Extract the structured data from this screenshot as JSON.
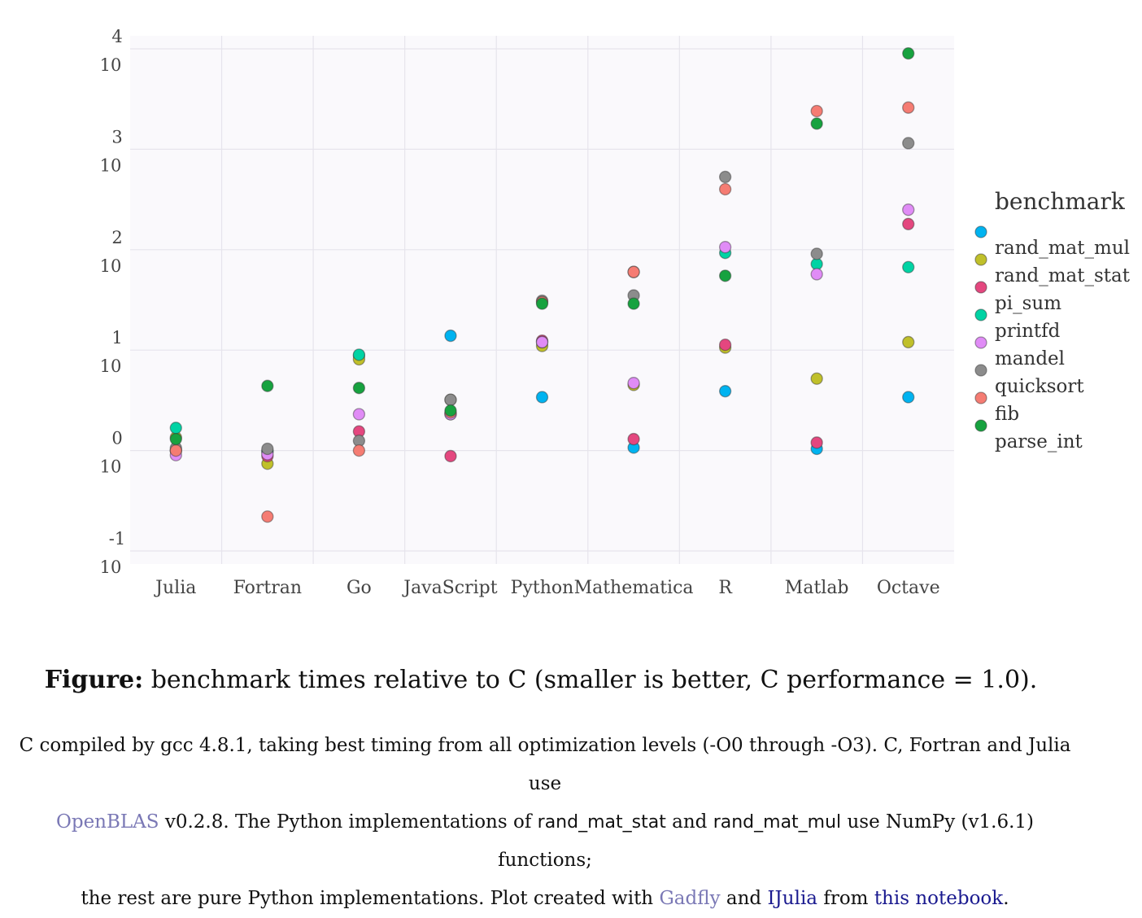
{
  "chart_data": {
    "type": "scatter",
    "title": "",
    "xlabel": "",
    "ylabel": "",
    "y_scale": "log10",
    "ylim": [
      0.1,
      10000
    ],
    "y_ticks": [
      {
        "base": "10",
        "exp": "-1"
      },
      {
        "base": "10",
        "exp": "0"
      },
      {
        "base": "10",
        "exp": "1"
      },
      {
        "base": "10",
        "exp": "2"
      },
      {
        "base": "10",
        "exp": "3"
      },
      {
        "base": "10",
        "exp": "4"
      }
    ],
    "grid": true,
    "legend_position": "right",
    "legend_title": "benchmark",
    "categories": [
      "Julia",
      "Fortran",
      "Go",
      "JavaScript",
      "Python",
      "Mathematica",
      "R",
      "Matlab",
      "Octave"
    ],
    "series": [
      {
        "name": "rand_mat_mul",
        "color": "#00b3f0",
        "values": [
          1.0,
          0.98,
          8.8,
          13.9,
          3.4,
          1.07,
          3.9,
          1.04,
          3.4
        ]
      },
      {
        "name": "rand_mat_stat",
        "color": "#c0c02a",
        "values": [
          1.35,
          0.74,
          8.1,
          3.2,
          11.0,
          4.5,
          10.6,
          5.2,
          12.0
        ]
      },
      {
        "name": "pi_sum",
        "color": "#e4477f",
        "values": [
          1.0,
          0.88,
          1.55,
          0.88,
          12.4,
          1.3,
          11.3,
          1.2,
          180
        ]
      },
      {
        "name": "printfd",
        "color": "#00d3a4",
        "values": [
          1.68,
          0.98,
          9.0,
          2.3,
          12.0,
          60,
          93,
          72,
          67
        ]
      },
      {
        "name": "mandel",
        "color": "#e08cf6",
        "values": [
          0.9,
          0.92,
          2.3,
          2.3,
          12.0,
          4.7,
          106,
          57,
          250
        ]
      },
      {
        "name": "quicksort",
        "color": "#8c8c8c",
        "values": [
          1.06,
          1.04,
          1.25,
          3.2,
          31,
          35,
          530,
          91,
          1150
        ]
      },
      {
        "name": "fib",
        "color": "#f57c73",
        "values": [
          1.0,
          0.22,
          1.0,
          2.4,
          30,
          60,
          400,
          2400,
          2600
        ]
      },
      {
        "name": "parse_int",
        "color": "#17a23f",
        "values": [
          1.3,
          4.4,
          4.2,
          2.5,
          29,
          29,
          55,
          1800,
          9000
        ]
      }
    ]
  },
  "caption": {
    "bold": "Figure:",
    "text": " benchmark times relative to C (smaller is better, C performance = 1.0)."
  },
  "notes": {
    "line1": "C compiled by gcc 4.8.1, taking best timing from all optimization levels (-O0 through -O3). C, Fortran and Julia use",
    "openblas_link": "OpenBLAS",
    "line2_a": " v0.2.8. The Python implementations of ",
    "code1": "rand_mat_stat",
    "line2_b": " and ",
    "code2": "rand_mat_mul",
    "line2_c": " use NumPy (v1.6.1) functions;",
    "line3_a": "the rest are pure Python implementations. Plot created with ",
    "gadfly_link": "Gadfly",
    "line3_b": " and ",
    "ijulia_link": "IJulia",
    "line3_c": " from ",
    "notebook_link": "this notebook",
    "line3_d": "."
  }
}
